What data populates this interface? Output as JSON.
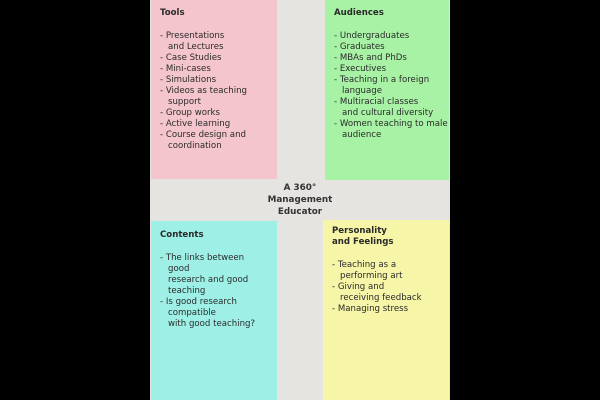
{
  "center_title": [
    "A 360°",
    "Management",
    "Educator"
  ],
  "quadrants": {
    "tools": {
      "title": "Tools",
      "color": "#f4c5cc",
      "items": [
        [
          "- Presentations",
          "and Lectures"
        ],
        [
          "- Case Studies"
        ],
        [
          "- Mini-cases"
        ],
        [
          "- Simulations"
        ],
        [
          "- Videos as teaching",
          "support"
        ],
        [
          "- Group works"
        ],
        [
          "- Active learning"
        ],
        [
          "- Course design and",
          "coordination"
        ]
      ]
    },
    "audiences": {
      "title": "Audiences",
      "color": "#a8f2a6",
      "items": [
        [
          "- Undergraduates"
        ],
        [
          "- Graduates"
        ],
        [
          "- MBAs and PhDs"
        ],
        [
          "- Executives"
        ],
        [
          "- Teaching in a foreign",
          "language"
        ],
        [
          "- Multiracial classes",
          "and cultural diversity"
        ],
        [
          "- Women teaching to male",
          "audience"
        ]
      ]
    },
    "contents": {
      "title": "Contents",
      "color": "#9ef0e6",
      "items": [
        [
          "- The links between",
          "good",
          "research and good",
          "teaching"
        ],
        [
          "- Is good research",
          "compatible",
          "with good teaching?"
        ]
      ]
    },
    "personality": {
      "title": [
        "Personality",
        "and Feelings"
      ],
      "color": "#f6f5a8",
      "items": [
        [
          "- Teaching as a",
          "performing art"
        ],
        [
          "- Giving and",
          "receiving feedback"
        ],
        [
          "- Managing stress"
        ]
      ]
    }
  }
}
